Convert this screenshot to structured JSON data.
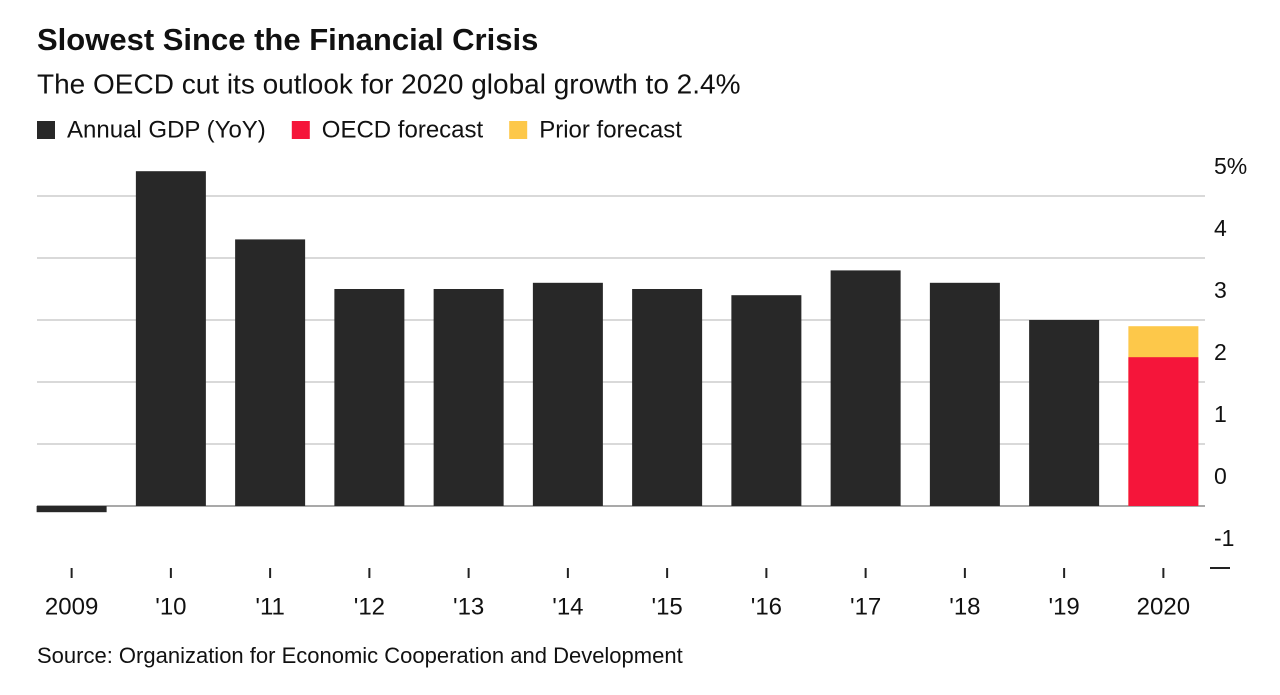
{
  "chart_data": {
    "type": "bar",
    "title": "Slowest Since the Financial Crisis",
    "subtitle": "The OECD cut its outlook for 2020 global growth to 2.4%",
    "categories": [
      "2009",
      "'10",
      "'11",
      "'12",
      "'13",
      "'14",
      "'15",
      "'16",
      "'17",
      "'18",
      "'19",
      "2020"
    ],
    "series": [
      {
        "name": "Annual GDP (YoY)",
        "color": "#282828",
        "values": [
          -0.1,
          5.4,
          4.3,
          3.5,
          3.5,
          3.6,
          3.5,
          3.4,
          3.8,
          3.6,
          3.0,
          null
        ]
      },
      {
        "name": "OECD forecast",
        "color": "#f5153a",
        "values": [
          null,
          null,
          null,
          null,
          null,
          null,
          null,
          null,
          null,
          null,
          null,
          2.4
        ]
      },
      {
        "name": "Prior forecast",
        "color": "#fdc84a",
        "values": [
          null,
          null,
          null,
          null,
          null,
          null,
          null,
          null,
          null,
          null,
          null,
          2.9
        ]
      }
    ],
    "ylim": [
      -1,
      5.5
    ],
    "yticks": [
      {
        "value": 5,
        "label": "5%"
      },
      4,
      3,
      2,
      1,
      0,
      -1
    ],
    "grid": true,
    "source": "Source: Organization for Economic Cooperation and Development"
  }
}
